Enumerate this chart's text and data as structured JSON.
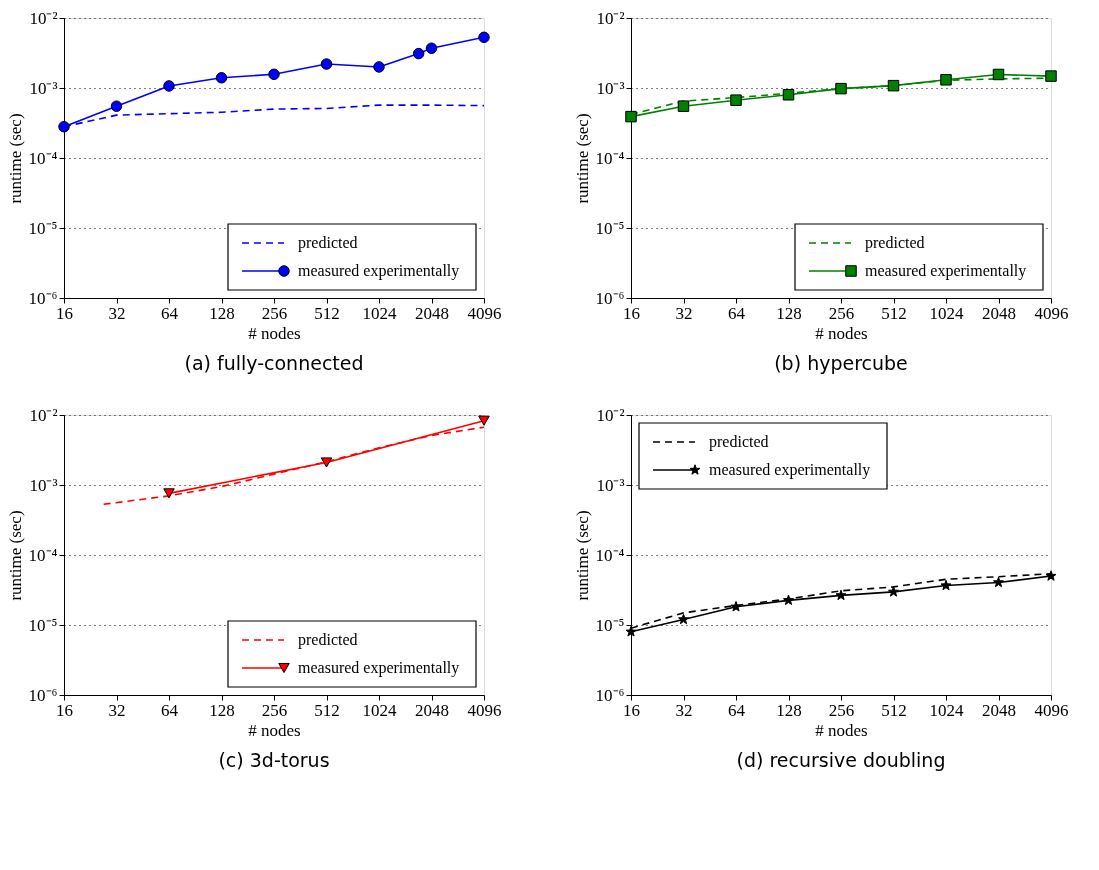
{
  "chart_data": [
    {
      "type": "line",
      "title": "(a) fully-connected",
      "xlabel": "# nodes",
      "ylabel": "runtime (sec)",
      "log": "xy",
      "xlim": [
        16,
        4096
      ],
      "xticks": [
        16,
        32,
        64,
        128,
        256,
        512,
        1024,
        2048,
        4096
      ],
      "ylim": [
        1e-06,
        0.01
      ],
      "yticks": [
        {
          "value": 1e-06,
          "label": "10⁻⁶"
        },
        {
          "value": 1e-05,
          "label": "10⁻⁵"
        },
        {
          "value": 0.0001,
          "label": "10⁻⁴"
        },
        {
          "value": 0.001,
          "label": "10⁻³"
        },
        {
          "value": 0.01,
          "label": "10⁻²"
        }
      ],
      "grid": "y",
      "legend": "bottom right",
      "series": [
        {
          "name": "predicted",
          "color": "#0000ff",
          "line_style": "dashed",
          "marker": "none",
          "x": [
            16,
            32,
            64,
            128,
            256,
            512,
            1024,
            2048,
            4096
          ],
          "values": [
            0.00028,
            0.00041,
            0.00043,
            0.00045,
            0.0005,
            0.00051,
            0.00057,
            0.00057,
            0.00056
          ]
        },
        {
          "name": "measured experimentally",
          "color": "#0000ff",
          "line_style": "solid",
          "marker": "circle",
          "x": [
            16,
            32,
            64,
            128,
            256,
            512,
            1024,
            1728,
            2048,
            4096
          ],
          "values": [
            0.00028,
            0.00055,
            0.00107,
            0.0014,
            0.00157,
            0.0022,
            0.002,
            0.0031,
            0.0037,
            0.0053
          ]
        }
      ]
    },
    {
      "type": "line",
      "title": "(b) hypercube",
      "xlabel": "# nodes",
      "ylabel": "runtime (sec)",
      "log": "xy",
      "xlim": [
        16,
        4096
      ],
      "xticks": [
        16,
        32,
        64,
        128,
        256,
        512,
        1024,
        2048,
        4096
      ],
      "ylim": [
        1e-06,
        0.01
      ],
      "yticks": [
        {
          "value": 1e-06,
          "label": "10⁻⁶"
        },
        {
          "value": 1e-05,
          "label": "10⁻⁵"
        },
        {
          "value": 0.0001,
          "label": "10⁻⁴"
        },
        {
          "value": 0.001,
          "label": "10⁻³"
        },
        {
          "value": 0.01,
          "label": "10⁻²"
        }
      ],
      "grid": "y",
      "legend": "bottom right",
      "series": [
        {
          "name": "predicted",
          "color": "#008000",
          "line_style": "dashed",
          "marker": "none",
          "x": [
            16,
            32,
            64,
            128,
            256,
            512,
            1024,
            2048,
            4096
          ],
          "values": [
            0.00042,
            0.00065,
            0.00073,
            0.00084,
            0.00098,
            0.00108,
            0.00129,
            0.00135,
            0.00138
          ]
        },
        {
          "name": "measured experimentally",
          "color": "#008000",
          "line_style": "solid",
          "marker": "square",
          "x": [
            16,
            32,
            64,
            128,
            256,
            512,
            1024,
            2048,
            4096
          ],
          "values": [
            0.00039,
            0.00055,
            0.00067,
            0.0008,
            0.00098,
            0.00108,
            0.00131,
            0.00156,
            0.00148
          ]
        }
      ]
    },
    {
      "type": "line",
      "title": "(c) 3d-torus",
      "xlabel": "# nodes",
      "ylabel": "runtime (sec)",
      "log": "xy",
      "xlim": [
        16,
        4096
      ],
      "xticks": [
        16,
        32,
        64,
        128,
        256,
        512,
        1024,
        2048,
        4096
      ],
      "ylim": [
        1e-06,
        0.01
      ],
      "yticks": [
        {
          "value": 1e-06,
          "label": "10⁻⁶"
        },
        {
          "value": 1e-05,
          "label": "10⁻⁵"
        },
        {
          "value": 0.0001,
          "label": "10⁻⁴"
        },
        {
          "value": 0.001,
          "label": "10⁻³"
        },
        {
          "value": 0.01,
          "label": "10⁻²"
        }
      ],
      "grid": "y",
      "legend": "bottom right",
      "series": [
        {
          "name": "predicted",
          "color": "#ff0000",
          "line_style": "dashed",
          "marker": "none",
          "x": [
            27,
            64,
            128,
            256,
            512,
            1024,
            2048,
            4096
          ],
          "values": [
            0.00053,
            0.0007,
            0.00095,
            0.00143,
            0.00215,
            0.0034,
            0.0051,
            0.0067
          ]
        },
        {
          "name": "measured experimentally",
          "color": "#ff0000",
          "line_style": "solid",
          "marker": "triangle",
          "x": [
            64,
            512,
            4096
          ],
          "values": [
            0.00076,
            0.0021,
            0.0083
          ]
        }
      ]
    },
    {
      "type": "line",
      "title": "(d) recursive doubling",
      "xlabel": "# nodes",
      "ylabel": "runtime (sec)",
      "log": "xy",
      "xlim": [
        16,
        4096
      ],
      "xticks": [
        16,
        32,
        64,
        128,
        256,
        512,
        1024,
        2048,
        4096
      ],
      "ylim": [
        1e-06,
        0.01
      ],
      "yticks": [
        {
          "value": 1e-06,
          "label": "10⁻⁶"
        },
        {
          "value": 1e-05,
          "label": "10⁻⁵"
        },
        {
          "value": 0.0001,
          "label": "10⁻⁴"
        },
        {
          "value": 0.001,
          "label": "10⁻³"
        },
        {
          "value": 0.01,
          "label": "10⁻²"
        }
      ],
      "grid": "y",
      "legend": "top left",
      "series": [
        {
          "name": "predicted",
          "color": "#000000",
          "line_style": "dashed",
          "marker": "none",
          "x": [
            16,
            32,
            64,
            128,
            256,
            512,
            1024,
            2048,
            4096
          ],
          "values": [
            9e-06,
            1.49e-05,
            1.9e-05,
            2.36e-05,
            3.08e-05,
            3.5e-05,
            4.5e-05,
            4.9e-05,
            5.4e-05
          ]
        },
        {
          "name": "measured experimentally",
          "color": "#000000",
          "line_style": "solid",
          "marker": "star",
          "x": [
            16,
            32,
            64,
            128,
            256,
            512,
            1024,
            2048,
            4096
          ],
          "values": [
            8e-06,
            1.2e-05,
            1.82e-05,
            2.25e-05,
            2.65e-05,
            2.97e-05,
            3.66e-05,
            4.05e-05,
            5e-05
          ]
        }
      ]
    }
  ]
}
